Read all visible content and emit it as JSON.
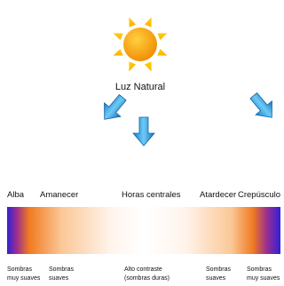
{
  "title": "Luz Natural",
  "phases": [
    "Alba",
    "Amanecer",
    "Horas centrales",
    "Atardecer",
    "Crepúsculo"
  ],
  "shadows": [
    {
      "lines": [
        "Sombras",
        "muy suaves"
      ]
    },
    {
      "lines": [
        "Sombras",
        "suaves"
      ]
    },
    {
      "lines": [
        "Alto contraste",
        "(sombras duras)"
      ]
    },
    {
      "lines": [
        "Sombras",
        "suaves"
      ]
    },
    {
      "lines": [
        "Sombras",
        "muy suaves"
      ]
    }
  ]
}
